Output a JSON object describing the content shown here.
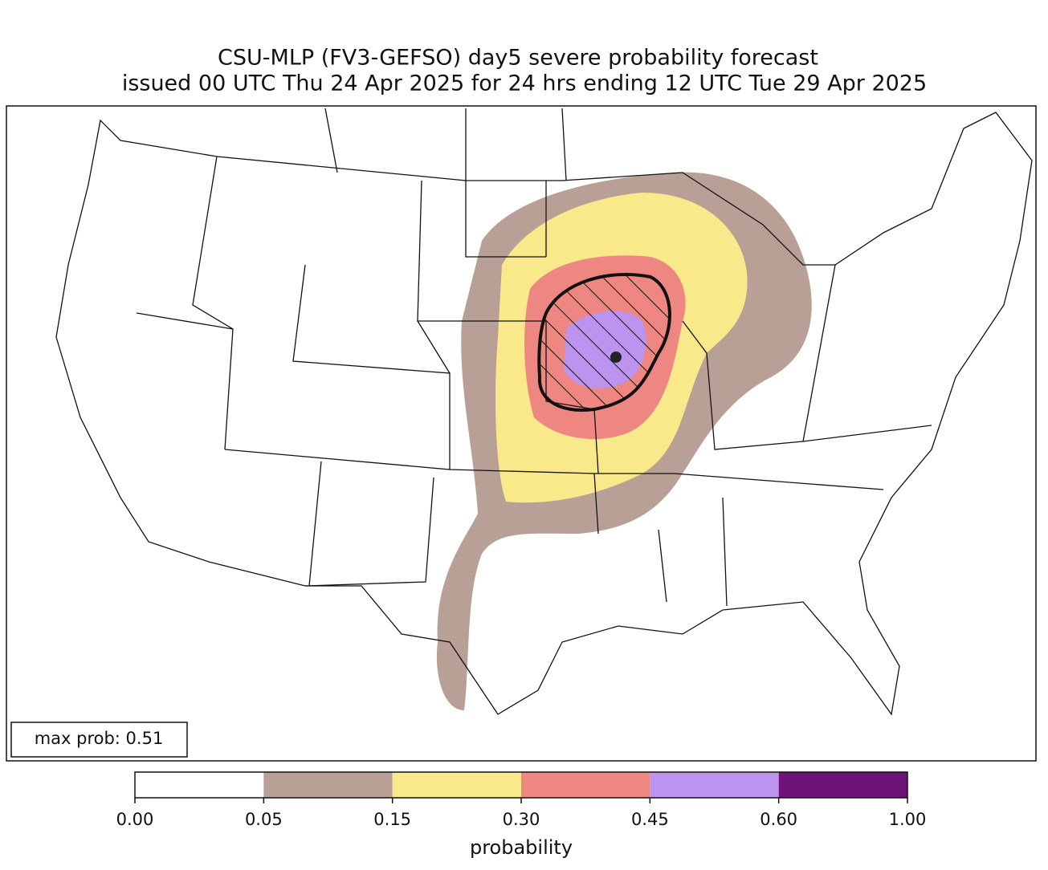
{
  "map": {
    "title": "CSU-MLP (FV3-GEFSO) day5 severe probability forecast",
    "subtitle": "issued 00 UTC Thu 24 Apr 2025 for 24 hrs ending 12 UTC Tue 29 Apr 2025",
    "max_prob_label": "max prob: 0.51",
    "colorbar": {
      "label": "probability",
      "ticks": [
        {
          "value": 0,
          "label": "0.00"
        },
        0.05,
        0.15,
        {
          "value": 0.3,
          "label": "0.30"
        },
        0.45,
        {
          "value": 0.6,
          "label": "0.60"
        },
        {
          "value": 1,
          "label": "1.00"
        }
      ],
      "colors": [
        "#ffffff",
        "#b9a096",
        "#f9e98a",
        "#ee8681",
        "#bc94f0",
        "#6e1479"
      ]
    }
  }
}
